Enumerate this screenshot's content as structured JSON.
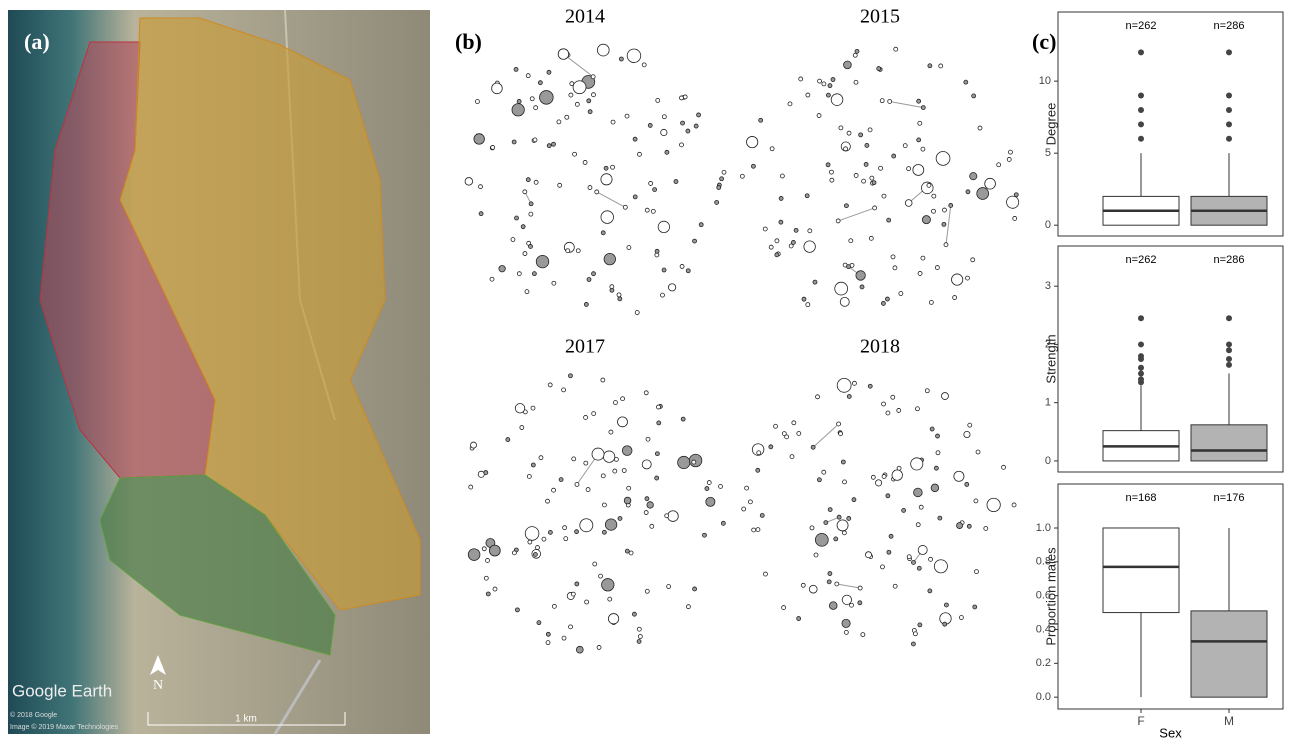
{
  "map": {
    "label": "(a)",
    "brand": "Google Earth",
    "copyright": [
      "© 2018 Google",
      "Image © 2019 Maxar Technologies"
    ],
    "scale": "1 km",
    "north": "N"
  },
  "networks": {
    "label": "(b)",
    "titles": [
      "2014",
      "2015",
      "2017",
      "2018"
    ]
  },
  "boxplots_label": "(c)",
  "chart_data": [
    {
      "type": "box",
      "ylabel": "Degree",
      "ylim": [
        -0.75,
        14.8
      ],
      "yticks": [
        0,
        5,
        10
      ],
      "colors": [
        "#ffffff",
        "#b3b3b3"
      ],
      "n_labels": [
        "n=262",
        "n=286"
      ],
      "boxes": [
        {
          "min": 0,
          "q1": 0,
          "median": 1,
          "q3": 2,
          "max": 5,
          "outliers": [
            6,
            7,
            8,
            9,
            12
          ]
        },
        {
          "min": 0,
          "q1": 0,
          "median": 1,
          "q3": 2,
          "max": 5,
          "outliers": [
            6,
            7,
            8,
            9,
            12
          ]
        }
      ]
    },
    {
      "type": "box",
      "ylabel": "Strength",
      "ylim": [
        -0.19,
        3.69
      ],
      "yticks": [
        0,
        1,
        2,
        3
      ],
      "colors": [
        "#ffffff",
        "#b3b3b3"
      ],
      "n_labels": [
        "n=262",
        "n=286"
      ],
      "boxes": [
        {
          "min": 0,
          "q1": 0,
          "median": 0.25,
          "q3": 0.52,
          "max": 1.3,
          "outliers": [
            1.35,
            1.4,
            1.5,
            1.6,
            1.75,
            1.8,
            2.0,
            2.45
          ]
        },
        {
          "min": 0,
          "q1": 0,
          "median": 0.18,
          "q3": 0.62,
          "max": 1.5,
          "outliers": [
            1.65,
            1.75,
            1.9,
            2.0,
            2.45
          ]
        }
      ]
    },
    {
      "type": "box",
      "ylabel": "Proportion males",
      "xlabel": "Sex",
      "categories": [
        "F",
        "M"
      ],
      "ylim": [
        -0.07,
        1.26
      ],
      "yticks": [
        {
          "value": 0,
          "label": "0.0"
        },
        {
          "value": 0.2,
          "label": "0.2"
        },
        {
          "value": 0.4,
          "label": "0.4"
        },
        {
          "value": 0.6,
          "label": "0.6"
        },
        {
          "value": 0.8,
          "label": "0.8"
        },
        {
          "value": 1,
          "label": "1.0"
        }
      ],
      "colors": [
        "#ffffff",
        "#b3b3b3"
      ],
      "n_labels": [
        "n=168",
        "n=176"
      ],
      "boxes": [
        {
          "min": 0,
          "q1": 0.5,
          "median": 0.77,
          "q3": 1.0,
          "max": 1.0,
          "outliers": []
        },
        {
          "min": 0,
          "q1": 0,
          "median": 0.33,
          "q3": 0.51,
          "max": 1.0,
          "outliers": []
        }
      ]
    }
  ]
}
